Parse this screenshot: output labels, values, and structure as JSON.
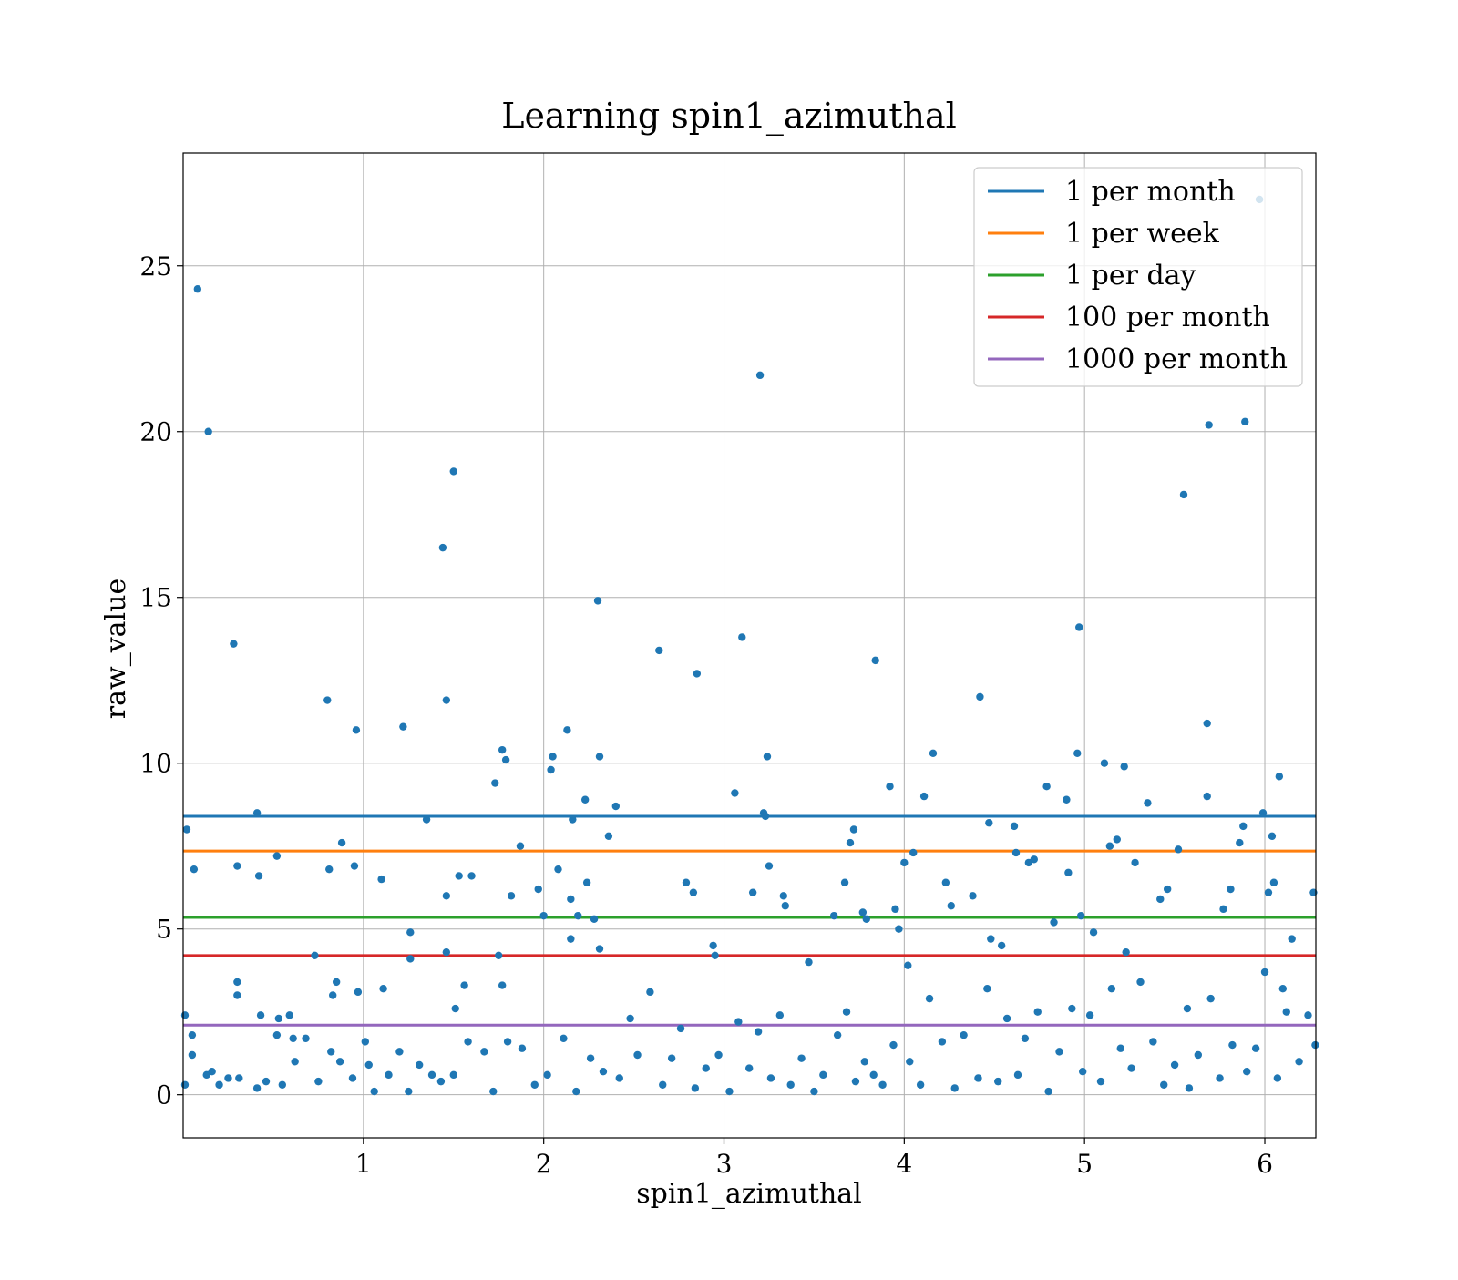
{
  "chart_data": {
    "type": "scatter",
    "title": "Learning spin1_azimuthal",
    "xlabel": "spin1_azimuthal",
    "ylabel": "raw_value",
    "xlim": [
      0,
      6.283
    ],
    "ylim": [
      -1.3,
      28.4
    ],
    "x_ticks": [
      1,
      2,
      3,
      4,
      5,
      6
    ],
    "y_ticks": [
      0,
      5,
      10,
      15,
      20,
      25
    ],
    "grid": true,
    "legend_position": "top-right",
    "hlines": [
      {
        "name": "1 per month",
        "y": 8.4,
        "color": "#1f77b4"
      },
      {
        "name": "1 per week",
        "y": 7.35,
        "color": "#ff7f0e"
      },
      {
        "name": "1 per day",
        "y": 5.35,
        "color": "#2ca02c"
      },
      {
        "name": "100 per month",
        "y": 4.2,
        "color": "#d62728"
      },
      {
        "name": "1000 per month",
        "y": 2.1,
        "color": "#9467bd"
      }
    ],
    "series": [
      {
        "color": "#1f77b4",
        "points": [
          [
            0.01,
            0.3
          ],
          [
            0.02,
            8.0
          ],
          [
            0.01,
            2.4
          ],
          [
            0.05,
            1.2
          ],
          [
            0.06,
            6.8
          ],
          [
            0.08,
            24.3
          ],
          [
            0.14,
            20.0
          ],
          [
            0.2,
            0.3
          ],
          [
            0.28,
            13.6
          ],
          [
            0.3,
            6.9
          ],
          [
            0.3,
            3.0
          ],
          [
            0.3,
            3.4
          ],
          [
            0.41,
            8.5
          ],
          [
            0.42,
            6.6
          ],
          [
            0.43,
            2.4
          ],
          [
            0.52,
            7.2
          ],
          [
            0.52,
            1.8
          ],
          [
            0.53,
            2.3
          ],
          [
            0.59,
            2.4
          ],
          [
            0.61,
            1.7
          ],
          [
            0.73,
            4.2
          ],
          [
            0.8,
            11.9
          ],
          [
            0.81,
            6.8
          ],
          [
            0.83,
            3.0
          ],
          [
            0.85,
            3.4
          ],
          [
            0.88,
            7.6
          ],
          [
            0.95,
            6.9
          ],
          [
            0.96,
            11.0
          ],
          [
            0.97,
            3.1
          ],
          [
            1.03,
            0.9
          ],
          [
            1.1,
            6.5
          ],
          [
            1.11,
            3.2
          ],
          [
            1.22,
            11.1
          ],
          [
            1.26,
            4.9
          ],
          [
            1.26,
            4.1
          ],
          [
            1.35,
            8.3
          ],
          [
            1.44,
            16.5
          ],
          [
            1.46,
            11.9
          ],
          [
            1.46,
            6.0
          ],
          [
            1.46,
            4.3
          ],
          [
            1.5,
            18.8
          ],
          [
            1.51,
            2.6
          ],
          [
            1.53,
            6.6
          ],
          [
            1.56,
            3.3
          ],
          [
            1.6,
            6.6
          ],
          [
            1.73,
            9.4
          ],
          [
            1.75,
            4.2
          ],
          [
            1.77,
            10.4
          ],
          [
            1.77,
            3.3
          ],
          [
            1.79,
            10.1
          ],
          [
            1.82,
            6.0
          ],
          [
            1.87,
            7.5
          ],
          [
            1.97,
            6.2
          ],
          [
            2.0,
            5.4
          ],
          [
            2.04,
            9.8
          ],
          [
            2.05,
            10.2
          ],
          [
            2.08,
            6.8
          ],
          [
            2.13,
            11.0
          ],
          [
            2.15,
            5.9
          ],
          [
            2.16,
            8.3
          ],
          [
            2.15,
            4.7
          ],
          [
            2.19,
            5.4
          ],
          [
            2.23,
            8.9
          ],
          [
            2.24,
            6.4
          ],
          [
            2.28,
            5.3
          ],
          [
            2.3,
            14.9
          ],
          [
            2.31,
            10.2
          ],
          [
            2.31,
            4.4
          ],
          [
            2.36,
            7.8
          ],
          [
            2.4,
            8.7
          ],
          [
            2.64,
            13.4
          ],
          [
            2.79,
            6.4
          ],
          [
            2.83,
            6.1
          ],
          [
            2.85,
            12.7
          ],
          [
            2.94,
            4.5
          ],
          [
            2.95,
            4.2
          ],
          [
            3.06,
            9.1
          ],
          [
            3.1,
            13.8
          ],
          [
            3.16,
            6.1
          ],
          [
            3.2,
            21.7
          ],
          [
            3.22,
            8.5
          ],
          [
            3.23,
            8.4
          ],
          [
            3.24,
            10.2
          ],
          [
            3.25,
            6.9
          ],
          [
            3.33,
            6.0
          ],
          [
            3.34,
            5.7
          ],
          [
            3.47,
            4.0
          ],
          [
            3.61,
            5.4
          ],
          [
            3.67,
            6.4
          ],
          [
            3.7,
            7.6
          ],
          [
            3.72,
            8.0
          ],
          [
            3.77,
            5.5
          ],
          [
            3.79,
            5.3
          ],
          [
            3.84,
            13.1
          ],
          [
            3.92,
            9.3
          ],
          [
            3.95,
            5.6
          ],
          [
            3.97,
            5.0
          ],
          [
            4.0,
            7.0
          ],
          [
            4.02,
            3.9
          ],
          [
            4.05,
            7.3
          ],
          [
            4.11,
            9.0
          ],
          [
            4.16,
            10.3
          ],
          [
            4.23,
            6.4
          ],
          [
            4.26,
            5.7
          ],
          [
            4.38,
            6.0
          ],
          [
            4.42,
            12.0
          ],
          [
            4.47,
            8.2
          ],
          [
            4.48,
            4.7
          ],
          [
            4.54,
            4.5
          ],
          [
            4.61,
            8.1
          ],
          [
            4.62,
            7.3
          ],
          [
            4.69,
            7.0
          ],
          [
            4.72,
            7.1
          ],
          [
            4.79,
            9.3
          ],
          [
            4.83,
            5.2
          ],
          [
            4.9,
            8.9
          ],
          [
            4.91,
            6.7
          ],
          [
            4.96,
            10.3
          ],
          [
            4.97,
            14.1
          ],
          [
            4.98,
            5.4
          ],
          [
            5.05,
            4.9
          ],
          [
            5.11,
            10.0
          ],
          [
            5.14,
            7.5
          ],
          [
            5.18,
            7.7
          ],
          [
            5.22,
            9.9
          ],
          [
            5.23,
            4.3
          ],
          [
            5.28,
            7.0
          ],
          [
            5.35,
            8.8
          ],
          [
            5.42,
            5.9
          ],
          [
            5.46,
            6.2
          ],
          [
            5.52,
            7.4
          ],
          [
            5.55,
            18.1
          ],
          [
            5.57,
            2.6
          ],
          [
            5.68,
            9.0
          ],
          [
            5.68,
            11.2
          ],
          [
            5.69,
            20.2
          ],
          [
            5.77,
            5.6
          ],
          [
            5.81,
            6.2
          ],
          [
            5.86,
            7.6
          ],
          [
            5.88,
            8.1
          ],
          [
            5.89,
            20.3
          ],
          [
            5.97,
            27.0
          ],
          [
            5.99,
            8.5
          ],
          [
            6.02,
            6.1
          ],
          [
            6.04,
            7.8
          ],
          [
            6.05,
            6.4
          ],
          [
            6.08,
            9.6
          ],
          [
            6.1,
            3.2
          ],
          [
            6.15,
            4.7
          ],
          [
            6.27,
            6.1
          ],
          [
            0.05,
            1.8
          ],
          [
            0.13,
            0.6
          ],
          [
            0.16,
            0.7
          ],
          [
            0.25,
            0.5
          ],
          [
            0.31,
            0.5
          ],
          [
            0.41,
            0.2
          ],
          [
            0.46,
            0.4
          ],
          [
            0.55,
            0.3
          ],
          [
            0.62,
            1.0
          ],
          [
            0.68,
            1.7
          ],
          [
            0.75,
            0.4
          ],
          [
            0.82,
            1.3
          ],
          [
            0.87,
            1.0
          ],
          [
            0.94,
            0.5
          ],
          [
            1.01,
            1.6
          ],
          [
            1.06,
            0.1
          ],
          [
            1.14,
            0.6
          ],
          [
            1.2,
            1.3
          ],
          [
            1.25,
            0.1
          ],
          [
            1.31,
            0.9
          ],
          [
            1.38,
            0.6
          ],
          [
            1.43,
            0.4
          ],
          [
            1.5,
            0.6
          ],
          [
            1.58,
            1.6
          ],
          [
            1.67,
            1.3
          ],
          [
            1.72,
            0.1
          ],
          [
            1.8,
            1.6
          ],
          [
            1.88,
            1.4
          ],
          [
            1.95,
            0.3
          ],
          [
            2.02,
            0.6
          ],
          [
            2.11,
            1.7
          ],
          [
            2.18,
            0.1
          ],
          [
            2.26,
            1.1
          ],
          [
            2.33,
            0.7
          ],
          [
            2.42,
            0.5
          ],
          [
            2.48,
            2.3
          ],
          [
            2.52,
            1.2
          ],
          [
            2.59,
            3.1
          ],
          [
            2.66,
            0.3
          ],
          [
            2.71,
            1.1
          ],
          [
            2.76,
            2.0
          ],
          [
            2.84,
            0.2
          ],
          [
            2.9,
            0.8
          ],
          [
            2.97,
            1.2
          ],
          [
            3.03,
            0.1
          ],
          [
            3.08,
            2.2
          ],
          [
            3.14,
            0.8
          ],
          [
            3.19,
            1.9
          ],
          [
            3.26,
            0.5
          ],
          [
            3.31,
            2.4
          ],
          [
            3.37,
            0.3
          ],
          [
            3.43,
            1.1
          ],
          [
            3.5,
            0.1
          ],
          [
            3.55,
            0.6
          ],
          [
            3.63,
            1.8
          ],
          [
            3.68,
            2.5
          ],
          [
            3.73,
            0.4
          ],
          [
            3.78,
            1.0
          ],
          [
            3.83,
            0.6
          ],
          [
            3.88,
            0.3
          ],
          [
            3.94,
            1.5
          ],
          [
            4.03,
            1.0
          ],
          [
            4.09,
            0.3
          ],
          [
            4.14,
            2.9
          ],
          [
            4.21,
            1.6
          ],
          [
            4.28,
            0.2
          ],
          [
            4.33,
            1.8
          ],
          [
            4.41,
            0.5
          ],
          [
            4.46,
            3.2
          ],
          [
            4.52,
            0.4
          ],
          [
            4.57,
            2.3
          ],
          [
            4.63,
            0.6
          ],
          [
            4.67,
            1.7
          ],
          [
            4.74,
            2.5
          ],
          [
            4.8,
            0.1
          ],
          [
            4.86,
            1.3
          ],
          [
            4.93,
            2.6
          ],
          [
            4.99,
            0.7
          ],
          [
            5.03,
            2.4
          ],
          [
            5.09,
            0.4
          ],
          [
            5.15,
            3.2
          ],
          [
            5.2,
            1.4
          ],
          [
            5.26,
            0.8
          ],
          [
            5.31,
            3.4
          ],
          [
            5.38,
            1.6
          ],
          [
            5.44,
            0.3
          ],
          [
            5.5,
            0.9
          ],
          [
            5.58,
            0.2
          ],
          [
            5.63,
            1.2
          ],
          [
            5.7,
            2.9
          ],
          [
            5.75,
            0.5
          ],
          [
            5.82,
            1.5
          ],
          [
            5.9,
            0.7
          ],
          [
            5.95,
            1.4
          ],
          [
            6.0,
            3.7
          ],
          [
            6.07,
            0.5
          ],
          [
            6.12,
            2.5
          ],
          [
            6.19,
            1.0
          ],
          [
            6.24,
            2.4
          ],
          [
            6.28,
            1.5
          ]
        ]
      }
    ]
  }
}
